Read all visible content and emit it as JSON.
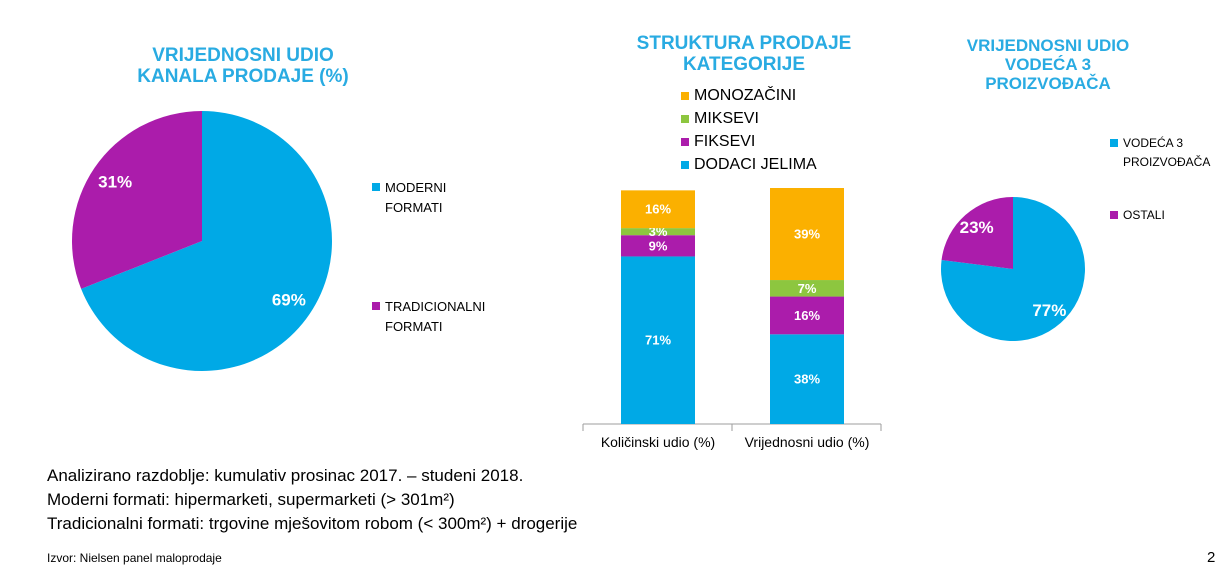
{
  "colors": {
    "title": "#29abe2",
    "cyan": "#00a9e6",
    "purple": "#ab1cab",
    "green": "#8dc63f",
    "orange": "#fbb000",
    "axis": "#9e9e9e"
  },
  "chart_data": [
    {
      "type": "pie",
      "title_lines": [
        "VRIJEDNOSNI UDIO",
        "KANALA PRODAJE (%)"
      ],
      "legend_position": "right",
      "slices": [
        {
          "name": "MODERNI FORMATI",
          "value": 69,
          "label": "69%",
          "color": "#00a9e6"
        },
        {
          "name": "TRADICIONALNI\nFORMATI",
          "value": 31,
          "label": "31%",
          "color": "#ab1cab"
        }
      ]
    },
    {
      "type": "bar",
      "stacked": true,
      "title_lines": [
        "STRUKTURA PRODAJE",
        "KATEGORIJE"
      ],
      "legend_position": "top",
      "categories": [
        "Količinski udio (%)",
        "Vrijednosni udio (%)"
      ],
      "ylim": [
        0,
        100
      ],
      "series": [
        {
          "name": "DODACI JELIMA",
          "color": "#00a9e6",
          "values": [
            71,
            38
          ],
          "labels": [
            "71%",
            "38%"
          ]
        },
        {
          "name": "FIKSEVI",
          "color": "#ab1cab",
          "values": [
            9,
            16
          ],
          "labels": [
            "9%",
            "16%"
          ]
        },
        {
          "name": "MIKSEVI",
          "color": "#8dc63f",
          "values": [
            3,
            7
          ],
          "labels": [
            "3%",
            "7%"
          ]
        },
        {
          "name": "MONOZAČINI",
          "color": "#fbb000",
          "values": [
            16,
            39
          ],
          "labels": [
            "16%",
            "39%"
          ]
        }
      ],
      "legend_order": [
        "MONOZAČINI",
        "MIKSEVI",
        "FIKSEVI",
        "DODACI JELIMA"
      ]
    },
    {
      "type": "pie",
      "title_lines": [
        "VRIJEDNOSNI UDIO",
        "VODEĆA 3",
        "PROIZVOĐAČA"
      ],
      "legend_position": "right",
      "slices": [
        {
          "name": "VODEĆA 3\nPROIZVOĐAČA",
          "value": 77,
          "label": "77%",
          "color": "#00a9e6"
        },
        {
          "name": "OSTALI",
          "value": 23,
          "label": "23%",
          "color": "#ab1cab"
        }
      ]
    }
  ],
  "notes": [
    "Analizirano razdoblje: kumulativ prosinac 2017. – studeni 2018.",
    "Moderni formati: hipermarketi, supermarketi (> 301m²)",
    "Tradicionalni formati: trgovine mješovitom robom (< 300m²) + drogerije"
  ],
  "source": "Izvor: Nielsen panel maloprodaje",
  "page_number": "2"
}
